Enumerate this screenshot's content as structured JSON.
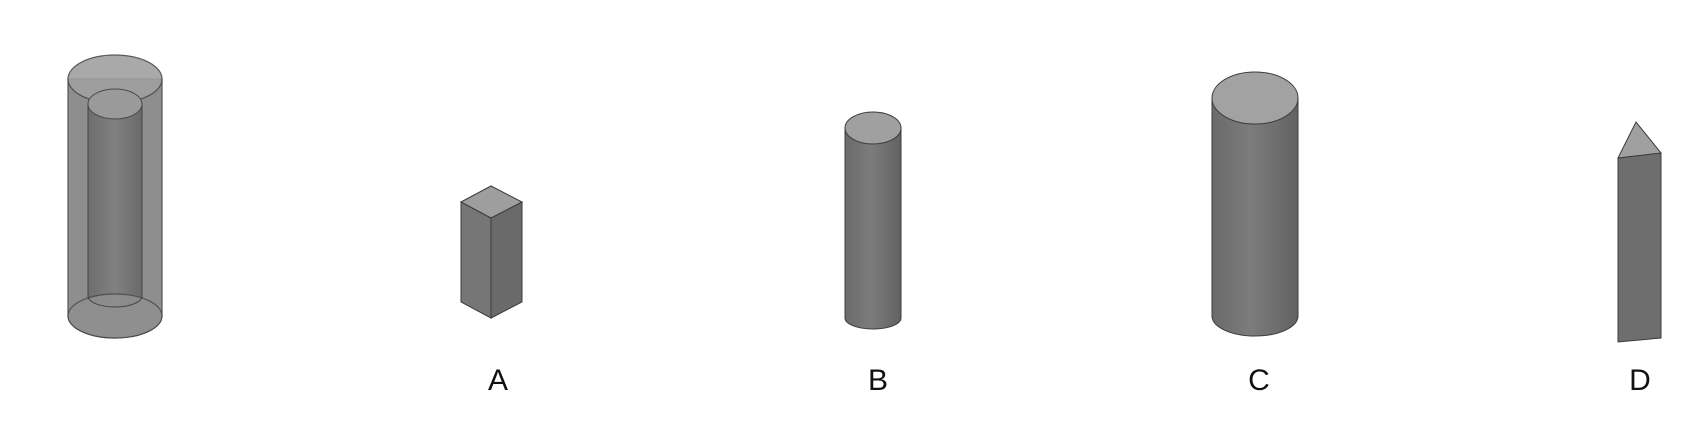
{
  "colors": {
    "background": "#ffffff",
    "solid_side": "#747474",
    "solid_side_light": "#8a8a8a",
    "solid_top": "#a3a3a3",
    "outline": "#3c3c3c",
    "transparent_shell": "#9a9a9a"
  },
  "figures": {
    "reference": {
      "shape": "hollow-cylinder"
    },
    "A": {
      "shape": "square-prism"
    },
    "B": {
      "shape": "thin-cylinder"
    },
    "C": {
      "shape": "wide-cylinder"
    },
    "D": {
      "shape": "triangular-prism"
    }
  },
  "labels": {
    "A": "A",
    "B": "B",
    "C": "C",
    "D": "D"
  }
}
